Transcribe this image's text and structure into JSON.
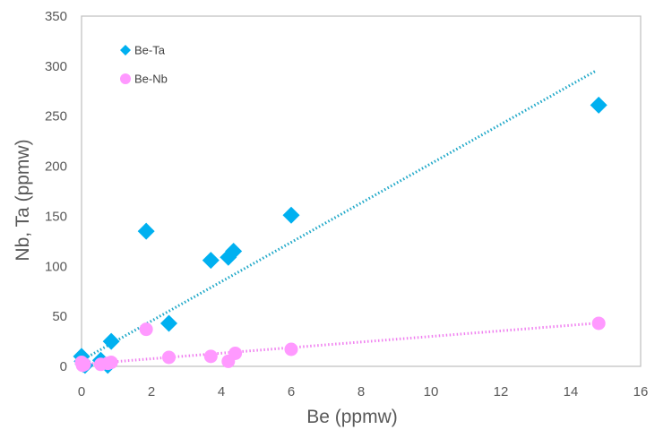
{
  "chart_data": {
    "type": "scatter",
    "title": "",
    "xlabel": "Be (ppmw)",
    "ylabel": "Nb, Ta (ppmw)",
    "xlim": [
      0,
      16
    ],
    "ylim": [
      0,
      350
    ],
    "xticks": [
      0,
      2,
      4,
      6,
      8,
      10,
      12,
      14,
      16
    ],
    "yticks": [
      0,
      50,
      100,
      150,
      200,
      250,
      300,
      350
    ],
    "grid": false,
    "legend_position": "top-left",
    "series": [
      {
        "name": "Be-Ta",
        "marker": "diamond",
        "color": "#00B0F0",
        "trendline_color": "#1FA8C8",
        "points": [
          {
            "x": 0.0,
            "y": 10
          },
          {
            "x": 0.02,
            "y": 5
          },
          {
            "x": 0.05,
            "y": 2
          },
          {
            "x": 0.1,
            "y": 1
          },
          {
            "x": 0.55,
            "y": 6
          },
          {
            "x": 0.75,
            "y": 1
          },
          {
            "x": 0.85,
            "y": 25
          },
          {
            "x": 1.85,
            "y": 135
          },
          {
            "x": 2.5,
            "y": 43
          },
          {
            "x": 3.7,
            "y": 106
          },
          {
            "x": 4.2,
            "y": 109
          },
          {
            "x": 4.35,
            "y": 115
          },
          {
            "x": 6.0,
            "y": 151
          },
          {
            "x": 14.8,
            "y": 261
          }
        ],
        "trendline": {
          "x": [
            0,
            14.7
          ],
          "y": [
            6,
            295
          ]
        }
      },
      {
        "name": "Be-Nb",
        "marker": "circle",
        "color": "#FF99FF",
        "trendline_color": "#F080F0",
        "points": [
          {
            "x": 0.0,
            "y": 4
          },
          {
            "x": 0.03,
            "y": 1
          },
          {
            "x": 0.08,
            "y": 2
          },
          {
            "x": 0.55,
            "y": 2
          },
          {
            "x": 0.75,
            "y": 3
          },
          {
            "x": 0.85,
            "y": 4
          },
          {
            "x": 1.85,
            "y": 37
          },
          {
            "x": 2.5,
            "y": 9
          },
          {
            "x": 3.7,
            "y": 10
          },
          {
            "x": 4.2,
            "y": 5
          },
          {
            "x": 4.4,
            "y": 13
          },
          {
            "x": 6.0,
            "y": 17
          },
          {
            "x": 14.8,
            "y": 43
          }
        ],
        "trendline": {
          "x": [
            0,
            14.7
          ],
          "y": [
            2,
            43
          ]
        }
      }
    ]
  }
}
